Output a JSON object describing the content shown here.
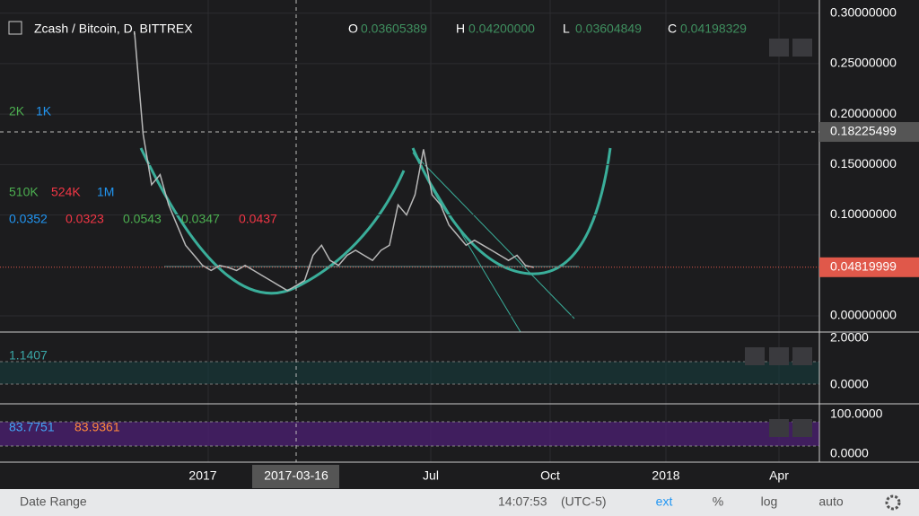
{
  "header": {
    "symbol": "Zcash / Bitcoin, D, BITTREX",
    "ohlc": [
      {
        "key": "O",
        "value": "0.03605389"
      },
      {
        "key": "H",
        "value": "0.04200000"
      },
      {
        "key": "L",
        "value": "0.03604849"
      },
      {
        "key": "C",
        "value": "0.04198329"
      }
    ]
  },
  "legends": {
    "volume": [
      "2K",
      "1K"
    ],
    "moving_averages": [
      "510K",
      "524K",
      "1M"
    ],
    "ma_values": [
      "0.0352",
      "0.0323",
      "0.0543",
      "0.0347",
      "0.0437"
    ]
  },
  "chart_data": {
    "type": "line",
    "color": "#b8b8b8",
    "values": [
      0.28,
      0.18,
      0.13,
      0.14,
      0.11,
      0.09,
      0.07,
      0.06,
      0.05,
      0.045,
      0.05,
      0.048,
      0.045,
      0.05,
      0.045,
      0.04,
      0.035,
      0.03,
      0.025,
      0.03,
      0.035,
      0.06,
      0.07,
      0.055,
      0.05,
      0.06,
      0.065,
      0.06,
      0.055,
      0.065,
      0.07,
      0.11,
      0.1,
      0.12,
      0.165,
      0.12,
      0.11,
      0.09,
      0.08,
      0.07,
      0.075,
      0.07,
      0.065,
      0.06,
      0.055,
      0.06,
      0.05,
      0.048
    ],
    "ylim": [
      -0.016,
      0.313
    ],
    "yticks": [
      {
        "value": 0.3,
        "label": "0.30000000"
      },
      {
        "value": 0.25,
        "label": "0.25000000"
      },
      {
        "value": 0.2,
        "label": "0.20000000"
      },
      {
        "value": 0.15,
        "label": "0.15000000"
      },
      {
        "value": 0.1,
        "label": "0.10000000"
      },
      {
        "value": 0,
        "label": "0.00000000"
      }
    ],
    "crosshair": {
      "value": 0.18225499,
      "label": "0.18225499"
    },
    "last_price": {
      "value": 0.04819999,
      "label": "0.04819999"
    }
  },
  "time_axis": [
    "2017",
    "2017-03-16",
    "Jul",
    "Oct",
    "2018",
    "Apr"
  ],
  "pane2": {
    "value": "1.1407",
    "ticks": [
      "2.0000",
      "0.0000"
    ]
  },
  "pane3": {
    "values": [
      "83.7751",
      "83.9361"
    ],
    "ticks": [
      "100.0000",
      "0.0000"
    ]
  },
  "footer": {
    "date_range": "Date Range",
    "time": "14:07:53",
    "timezone": "(UTC-5)",
    "buttons": [
      "ext",
      "%",
      "log",
      "auto"
    ]
  }
}
